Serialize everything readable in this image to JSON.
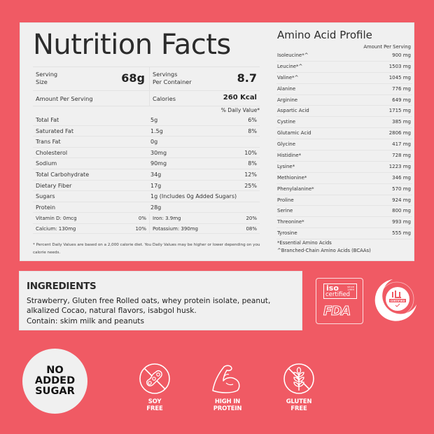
{
  "nutrition_facts": {
    "title": "Nutrition Facts",
    "serving_size_label": "Serving\nSize",
    "serving_size_value": "68g",
    "servings_per_container_label": "Servings\nPer Container",
    "servings_per_container_value": "8.7",
    "amount_per_serving_label": "Amount Per Serving",
    "calories_label": "Calories",
    "calories_value": "260 Kcal",
    "daily_value_header": "% Daily Value*",
    "nutrients": [
      {
        "name": "Total Fat",
        "amount": "5g",
        "dv": "6%"
      },
      {
        "name": "Saturated Fat",
        "amount": "1.5g",
        "dv": "8%"
      },
      {
        "name": "Trans Fat",
        "amount": "0g",
        "dv": ""
      },
      {
        "name": "Cholesterol",
        "amount": "30mg",
        "dv": "10%"
      },
      {
        "name": "Sodium",
        "amount": "90mg",
        "dv": "8%"
      },
      {
        "name": "Total Carbohydrate",
        "amount": "34g",
        "dv": "12%"
      },
      {
        "name": "Dietary Fiber",
        "amount": "17g",
        "dv": "25%"
      },
      {
        "name": "Sugars",
        "amount": "1g (Includes 0g Added Sugars)",
        "dv": ""
      },
      {
        "name": "Protein",
        "amount": "28g",
        "dv": ""
      }
    ],
    "vitamins": [
      {
        "left_name": "Vitamin D: 0mcg",
        "left_dv": "0%",
        "right_name": "Iron: 3.9mg",
        "right_dv": "20%"
      },
      {
        "left_name": "Calcium: 130mg",
        "left_dv": "10%",
        "right_name": "Potassium: 390mg",
        "right_dv": "08%"
      }
    ],
    "footnote": "* Percent Daily Values are based on a 2,000 calorie diet. You Daily Values may be higher or lower depending on you calorie needs."
  },
  "amino_acid_profile": {
    "title": "Amino Acid Profile",
    "column_header": "Amount Per Serving",
    "items": [
      {
        "name": "Isoleucine*^",
        "value": "900 mg"
      },
      {
        "name": "Leucine*^",
        "value": "1503 mg"
      },
      {
        "name": "Valine*^",
        "value": "1045 mg"
      },
      {
        "name": "Alanine",
        "value": "776 mg"
      },
      {
        "name": "Arginine",
        "value": "649 mg"
      },
      {
        "name": "Aspartic Acid",
        "value": "1715 mg"
      },
      {
        "name": "Cystine",
        "value": "385 mg"
      },
      {
        "name": "Glutamic Acid",
        "value": "2806 mg"
      },
      {
        "name": "Glycine",
        "value": "417 mg"
      },
      {
        "name": "Histidine*",
        "value": "728 mg"
      },
      {
        "name": "Lysine*",
        "value": "1223 mg"
      },
      {
        "name": "Methionine*",
        "value": "346 mg"
      },
      {
        "name": "Phenylalanine*",
        "value": "570 mg"
      },
      {
        "name": "Proline",
        "value": "924 mg"
      },
      {
        "name": "Serine",
        "value": "800 mg"
      },
      {
        "name": "Threonine*",
        "value": "993 mg"
      },
      {
        "name": "Tyrosine",
        "value": "555 mg"
      }
    ],
    "note_essential": "*Essential Amino Acids",
    "note_bcaa": "^Branched-Chain Amino Acids (BCAAs)"
  },
  "ingredients": {
    "title": "INGREDIENTS",
    "text": "Strawberry, Gluten free Rolled oats, whey protein isolate, peanut, alkalized Cocao, natural flavors, isabgol husk.",
    "contains": "Contain: skim milk and peanuts"
  },
  "certifications": {
    "iso_label": "iso",
    "iso_since": "since\n1999",
    "iso_certified": "certified",
    "fda_label": "FDA",
    "halal_label": "CERTIFIED",
    "halal_ring_text": "International Halal Certification"
  },
  "badges": {
    "no_added_sugar": "NO\nADDED\nSUGAR",
    "features": [
      {
        "icon": "soy-free-icon",
        "label": "SOY\nFREE"
      },
      {
        "icon": "muscle-arm-icon",
        "label": "HIGH IN\nPROTEIN"
      },
      {
        "icon": "gluten-free-icon",
        "label": "GLUTEN\nFREE"
      }
    ]
  },
  "colors": {
    "background": "#f05a64",
    "panel": "#f0f0f0",
    "text": "#333333"
  }
}
